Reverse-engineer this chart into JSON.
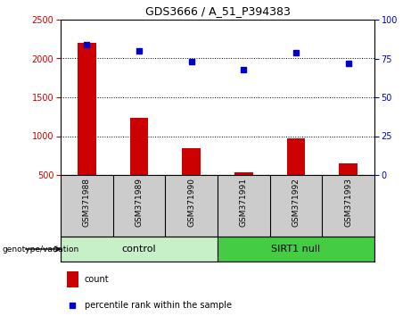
{
  "title": "GDS3666 / A_51_P394383",
  "samples": [
    "GSM371988",
    "GSM371989",
    "GSM371990",
    "GSM371991",
    "GSM371992",
    "GSM371993"
  ],
  "counts": [
    2200,
    1230,
    840,
    530,
    970,
    650
  ],
  "percentile_ranks": [
    84,
    80,
    73,
    68,
    79,
    72
  ],
  "ylim_left": [
    500,
    2500
  ],
  "ylim_right": [
    0,
    100
  ],
  "yticks_left": [
    500,
    1000,
    1500,
    2000,
    2500
  ],
  "yticks_right": [
    0,
    25,
    50,
    75,
    100
  ],
  "bar_color": "#cc0000",
  "dot_color": "#0000cc",
  "bar_width": 0.35,
  "groups": [
    {
      "label": "control",
      "indices": [
        0,
        1,
        2
      ],
      "color": "#c8f0c8"
    },
    {
      "label": "SIRT1 null",
      "indices": [
        3,
        4,
        5
      ],
      "color": "#44cc44"
    }
  ],
  "genotype_label": "genotype/variation",
  "legend_count_label": "count",
  "legend_percentile_label": "percentile rank within the sample",
  "xlabels_bg": "#cccccc",
  "control_color": "#c8f0c8",
  "sirt1_color": "#44cc44"
}
